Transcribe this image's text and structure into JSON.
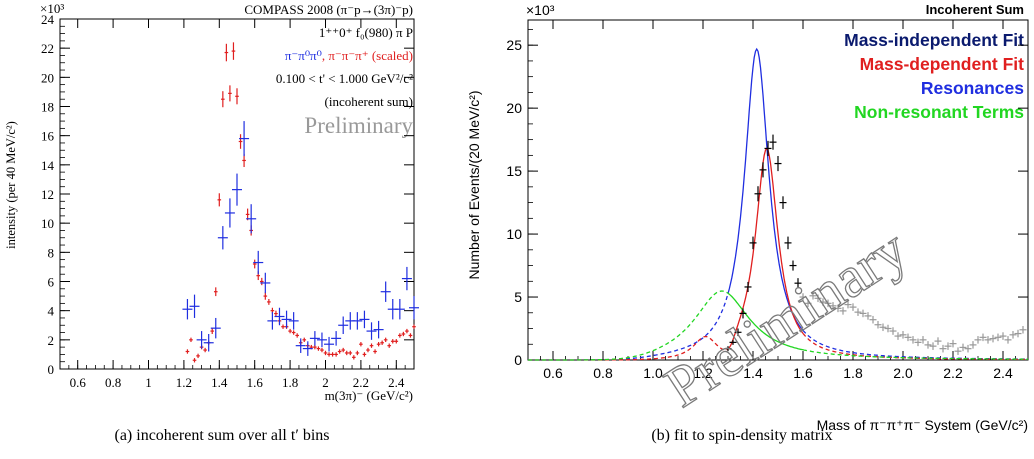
{
  "panels": [
    {
      "id": "a",
      "caption": "(a) incoherent sum over all t′ bins",
      "y_exponent": "×10³",
      "annotations": [
        "COMPASS 2008 (π⁻p→(3π)⁻p)",
        "1⁺⁺0⁺ f₀(980) π P",
        "0.100 < t' < 1.000 GeV²/c²",
        "(incoherent sum)"
      ],
      "legend_parts": [
        "π⁻π⁰π⁰",
        ", ",
        "π⁻π⁻π⁺ (scaled)"
      ],
      "watermark": "Preliminary"
    },
    {
      "id": "b",
      "caption": "(b) fit to spin-density matrix",
      "y_exponent": "×10³",
      "top_label": "Incoherent Sum",
      "watermark": "Preliminary"
    }
  ],
  "colors": {
    "blue": "#1f2ee0",
    "red": "#e01f1f",
    "darkblue": "#0a1a6e",
    "green": "#22d622",
    "grey": "#999999",
    "axis": "#000000"
  },
  "chart_data": [
    {
      "type": "scatter",
      "panel": "a",
      "xlabel": "m(3π)⁻ (GeV/c²)",
      "ylabel": "intensity (per 40 MeV/c²)",
      "xlim": [
        0.5,
        2.5
      ],
      "ylim": [
        0,
        24
      ],
      "y_unit": "×10³",
      "xticks": [
        0.6,
        0.8,
        1,
        1.2,
        1.4,
        1.6,
        1.8,
        2,
        2.2,
        2.4
      ],
      "yticks": [
        0,
        2,
        4,
        6,
        8,
        10,
        12,
        14,
        16,
        18,
        20,
        22,
        24
      ],
      "series": [
        {
          "name": "π⁻π⁰π⁰",
          "color": "#1f2ee0",
          "x": [
            1.22,
            1.26,
            1.3,
            1.34,
            1.38,
            1.42,
            1.46,
            1.5,
            1.54,
            1.58,
            1.62,
            1.66,
            1.7,
            1.74,
            1.78,
            1.82,
            1.86,
            1.9,
            1.94,
            1.98,
            2.02,
            2.06,
            2.1,
            2.14,
            2.18,
            2.22,
            2.26,
            2.3,
            2.34,
            2.38,
            2.42,
            2.46,
            2.5
          ],
          "y": [
            4.1,
            4.3,
            2.0,
            1.8,
            2.8,
            9.0,
            10.7,
            12.3,
            15.8,
            10.3,
            7.3,
            5.9,
            3.3,
            3.6,
            3.4,
            3.3,
            1.6,
            1.4,
            2.1,
            2.0,
            1.7,
            2.1,
            3.0,
            3.3,
            3.3,
            3.4,
            2.6,
            2.7,
            5.3,
            4.1,
            4.1,
            6.2,
            4.2
          ],
          "err": [
            0.7,
            0.8,
            0.6,
            0.6,
            0.7,
            0.8,
            1.0,
            1.1,
            1.2,
            1.0,
            0.8,
            0.7,
            0.6,
            0.6,
            0.6,
            0.6,
            0.5,
            0.5,
            0.5,
            0.5,
            0.5,
            0.5,
            0.6,
            0.6,
            0.6,
            0.6,
            0.6,
            0.6,
            0.7,
            0.7,
            0.7,
            0.8,
            0.8
          ]
        },
        {
          "name": "π⁻π⁻π⁺ (scaled)",
          "color": "#e01f1f",
          "x": [
            1.22,
            1.24,
            1.26,
            1.28,
            1.3,
            1.32,
            1.34,
            1.36,
            1.38,
            1.4,
            1.42,
            1.44,
            1.46,
            1.48,
            1.5,
            1.52,
            1.54,
            1.56,
            1.58,
            1.6,
            1.62,
            1.64,
            1.66,
            1.68,
            1.7,
            1.72,
            1.74,
            1.76,
            1.78,
            1.8,
            1.82,
            1.84,
            1.86,
            1.88,
            1.9,
            1.92,
            1.94,
            1.96,
            1.98,
            2.0,
            2.02,
            2.04,
            2.06,
            2.08,
            2.1,
            2.12,
            2.14,
            2.16,
            2.18,
            2.2,
            2.22,
            2.24,
            2.26,
            2.28,
            2.3,
            2.32,
            2.34,
            2.36,
            2.38,
            2.4,
            2.42,
            2.44,
            2.46,
            2.48,
            2.5
          ],
          "y": [
            1.2,
            2.0,
            0.6,
            0.9,
            1.5,
            1.3,
            1.8,
            2.6,
            5.3,
            11.6,
            18.5,
            21.7,
            18.9,
            21.8,
            18.7,
            15.6,
            14.3,
            10.6,
            9.5,
            7.2,
            6.4,
            6.0,
            5.0,
            4.6,
            4.0,
            3.8,
            3.3,
            2.9,
            2.9,
            2.6,
            2.5,
            2.3,
            1.8,
            2.0,
            1.6,
            1.5,
            1.5,
            1.4,
            1.3,
            1.1,
            1.0,
            1.0,
            1.0,
            1.2,
            1.3,
            1.1,
            1.1,
            0.8,
            1.1,
            1.7,
            1.0,
            1.3,
            1.6,
            1.2,
            1.7,
            1.8,
            2.0,
            1.6,
            1.9,
            1.9,
            2.3,
            2.4,
            2.6,
            2.3,
            2.9
          ],
          "err": [
            0.15,
            0.15,
            0.15,
            0.15,
            0.15,
            0.15,
            0.15,
            0.2,
            0.3,
            0.45,
            0.55,
            0.6,
            0.55,
            0.6,
            0.55,
            0.5,
            0.45,
            0.4,
            0.35,
            0.3,
            0.3,
            0.25,
            0.25,
            0.2,
            0.2,
            0.2,
            0.2,
            0.15,
            0.15,
            0.15,
            0.15,
            0.15,
            0.15,
            0.15,
            0.15,
            0.15,
            0.15,
            0.15,
            0.15,
            0.15,
            0.15,
            0.15,
            0.15,
            0.15,
            0.15,
            0.15,
            0.15,
            0.15,
            0.15,
            0.15,
            0.15,
            0.15,
            0.15,
            0.15,
            0.15,
            0.15,
            0.15,
            0.15,
            0.15,
            0.15,
            0.15,
            0.15,
            0.15,
            0.15,
            0.15
          ]
        }
      ]
    },
    {
      "type": "line",
      "panel": "b",
      "xlabel": "Mass of π⁻π⁺π⁻ System (GeV/c²)",
      "ylabel": "Number of Events/(20 MeV/c²)",
      "xlim": [
        0.5,
        2.5
      ],
      "ylim": [
        0,
        27
      ],
      "y_unit": "×10³",
      "xticks": [
        0.6,
        0.8,
        1.0,
        1.2,
        1.4,
        1.6,
        1.8,
        2.0,
        2.2,
        2.4
      ],
      "yticks": [
        0,
        5,
        10,
        15,
        20,
        25
      ],
      "legend": [
        {
          "label": "Mass-independent Fit",
          "color": "#0a1a6e"
        },
        {
          "label": "Mass-dependent Fit",
          "color": "#e01f1f"
        },
        {
          "label": "Resonances",
          "color": "#1f2ee0"
        },
        {
          "label": "Non-resonant Terms",
          "color": "#22d622"
        }
      ],
      "series": [
        {
          "name": "Mass-independent Fit",
          "color": "#000000",
          "style": "points",
          "x": [
            1.3,
            1.32,
            1.34,
            1.36,
            1.38,
            1.4,
            1.42,
            1.44,
            1.46,
            1.48,
            1.5,
            1.52,
            1.54,
            1.56,
            1.58
          ],
          "y": [
            0.9,
            1.4,
            2.2,
            3.7,
            5.8,
            9.3,
            13.2,
            15.1,
            16.8,
            17.3,
            15.6,
            12.5,
            9.3,
            7.5,
            6.1
          ],
          "err": [
            0.2,
            0.2,
            0.3,
            0.4,
            0.4,
            0.5,
            0.6,
            0.6,
            0.6,
            0.6,
            0.6,
            0.5,
            0.5,
            0.4,
            0.4
          ]
        },
        {
          "name": "Mass-independent Fit (outside fit range)",
          "color": "#999999",
          "style": "points",
          "x": [
            1.6,
            1.62,
            1.64,
            1.66,
            1.68,
            1.7,
            1.72,
            1.74,
            1.76,
            1.78,
            1.8,
            1.82,
            1.84,
            1.86,
            1.88,
            1.9,
            1.92,
            1.94,
            1.96,
            1.98,
            2.0,
            2.02,
            2.04,
            2.06,
            2.08,
            2.1,
            2.12,
            2.14,
            2.16,
            2.18,
            2.2,
            2.22,
            2.24,
            2.26,
            2.28,
            2.3,
            2.32,
            2.34,
            2.36,
            2.38,
            2.4,
            2.42,
            2.44,
            2.46,
            2.48
          ],
          "y": [
            5.0,
            4.5,
            5.1,
            4.9,
            4.6,
            4.5,
            4.3,
            4.1,
            3.9,
            4.4,
            4.2,
            3.8,
            3.7,
            3.5,
            3.2,
            2.8,
            2.6,
            2.5,
            2.3,
            1.9,
            2.0,
            1.8,
            1.6,
            1.4,
            1.6,
            1.2,
            1.1,
            1.5,
            0.9,
            1.1,
            1.3,
            0.7,
            1.0,
            0.9,
            1.2,
            1.6,
            1.8,
            1.6,
            1.7,
            1.8,
            1.9,
            1.6,
            2.0,
            2.1,
            2.4
          ],
          "err": [
            0.3,
            0.3,
            0.3,
            0.3,
            0.3,
            0.3,
            0.3,
            0.3,
            0.3,
            0.3,
            0.3,
            0.3,
            0.3,
            0.3,
            0.3,
            0.3,
            0.3,
            0.3,
            0.3,
            0.3,
            0.3,
            0.3,
            0.3,
            0.3,
            0.3,
            0.3,
            0.3,
            0.3,
            0.3,
            0.3,
            0.3,
            0.3,
            0.3,
            0.3,
            0.3,
            0.3,
            0.3,
            0.3,
            0.3,
            0.3,
            0.3,
            0.3,
            0.3,
            0.3,
            0.3
          ]
        },
        {
          "name": "Resonances",
          "color": "#1f2ee0",
          "style": "curve",
          "peak": {
            "mass": 1.415,
            "height": 24.7,
            "width": 0.12
          },
          "solid_range": [
            1.3,
            1.6
          ]
        },
        {
          "name": "Mass-dependent Fit",
          "color": "#e01f1f",
          "style": "curve",
          "peak": {
            "mass": 1.455,
            "height": 16.8,
            "width": 0.11
          },
          "dip": {
            "mass": 1.31,
            "depth": 0.0
          },
          "bump": {
            "mass": 1.21,
            "height": 2.1,
            "width": 0.12
          },
          "solid_range": [
            1.3,
            1.6
          ]
        },
        {
          "name": "Non-resonant Terms",
          "color": "#22d622",
          "style": "curve",
          "peak": {
            "mass": 1.275,
            "height": 5.5,
            "width": 0.27
          },
          "solid_range": [
            1.3,
            1.6
          ]
        }
      ]
    }
  ]
}
